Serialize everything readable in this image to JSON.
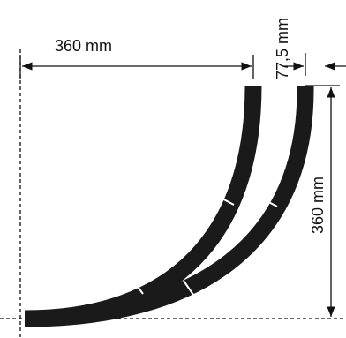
{
  "dimensions": {
    "top_width": "360 mm",
    "track_spacing": "77,5 mm",
    "height": "360 mm"
  },
  "colors": {
    "track": "#1a1a1a",
    "joint": "#ffffff",
    "lines": "#111111"
  }
}
